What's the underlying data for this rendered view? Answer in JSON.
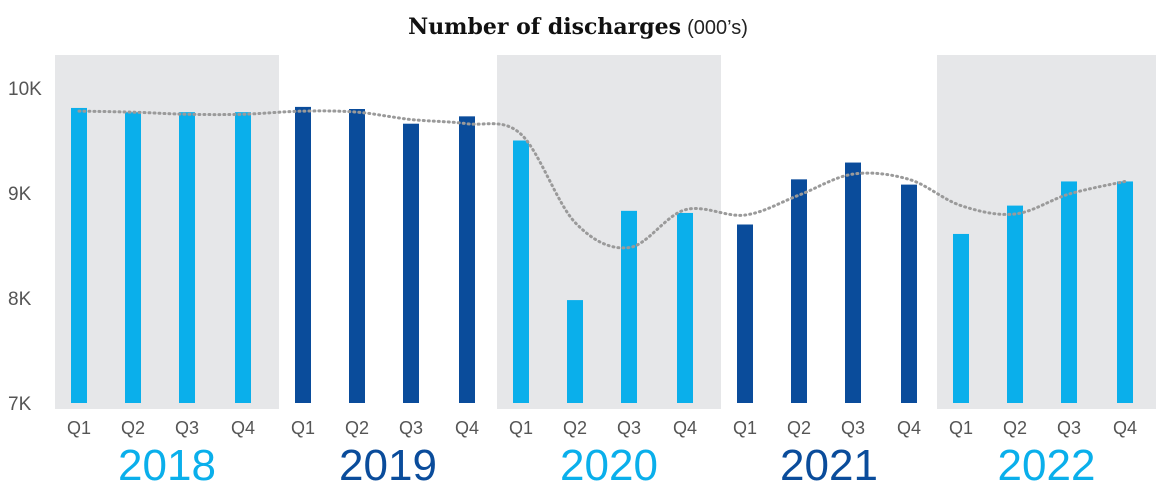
{
  "colors": {
    "light_blue": "#0AAFEB",
    "dark_blue": "#0A4C9B",
    "band_gray": "#E6E7E9",
    "trend_gray": "#9A9A9A",
    "axis_text": "#555555"
  },
  "chart_data": {
    "type": "bar",
    "title": "Number of discharges",
    "subtitle": "(000’s)",
    "ylim": [
      7000,
      10000
    ],
    "y_ticks": [
      {
        "value": 10000,
        "label": "10K"
      },
      {
        "value": 9000,
        "label": "9K"
      },
      {
        "value": 8000,
        "label": "8K"
      },
      {
        "value": 7000,
        "label": "7K"
      }
    ],
    "grid": false,
    "years": [
      {
        "label": "2018",
        "color": "light_blue",
        "band": true
      },
      {
        "label": "2019",
        "color": "dark_blue",
        "band": false
      },
      {
        "label": "2020",
        "color": "light_blue",
        "band": true
      },
      {
        "label": "2021",
        "color": "dark_blue",
        "band": false
      },
      {
        "label": "2022",
        "color": "light_blue",
        "band": true
      }
    ],
    "quarters": [
      "Q1",
      "Q2",
      "Q3",
      "Q4"
    ],
    "bars": [
      {
        "year": "2018",
        "quarter": "Q1",
        "value": 9810
      },
      {
        "year": "2018",
        "quarter": "Q2",
        "value": 9770
      },
      {
        "year": "2018",
        "quarter": "Q3",
        "value": 9770
      },
      {
        "year": "2018",
        "quarter": "Q4",
        "value": 9770
      },
      {
        "year": "2019",
        "quarter": "Q1",
        "value": 9820
      },
      {
        "year": "2019",
        "quarter": "Q2",
        "value": 9800
      },
      {
        "year": "2019",
        "quarter": "Q3",
        "value": 9660
      },
      {
        "year": "2019",
        "quarter": "Q4",
        "value": 9730
      },
      {
        "year": "2020",
        "quarter": "Q1",
        "value": 9500
      },
      {
        "year": "2020",
        "quarter": "Q2",
        "value": 7980
      },
      {
        "year": "2020",
        "quarter": "Q3",
        "value": 8830
      },
      {
        "year": "2020",
        "quarter": "Q4",
        "value": 8810
      },
      {
        "year": "2021",
        "quarter": "Q1",
        "value": 8700
      },
      {
        "year": "2021",
        "quarter": "Q2",
        "value": 9130
      },
      {
        "year": "2021",
        "quarter": "Q3",
        "value": 9290
      },
      {
        "year": "2021",
        "quarter": "Q4",
        "value": 9080
      },
      {
        "year": "2022",
        "quarter": "Q1",
        "value": 8610
      },
      {
        "year": "2022",
        "quarter": "Q2",
        "value": 8880
      },
      {
        "year": "2022",
        "quarter": "Q3",
        "value": 9110
      },
      {
        "year": "2022",
        "quarter": "Q4",
        "value": 9110
      }
    ],
    "trend": [
      9780,
      9770,
      9750,
      9750,
      9780,
      9770,
      9700,
      9660,
      9560,
      8720,
      8480,
      8840,
      8790,
      8980,
      9180,
      9130,
      8880,
      8800,
      8990,
      9110
    ]
  }
}
